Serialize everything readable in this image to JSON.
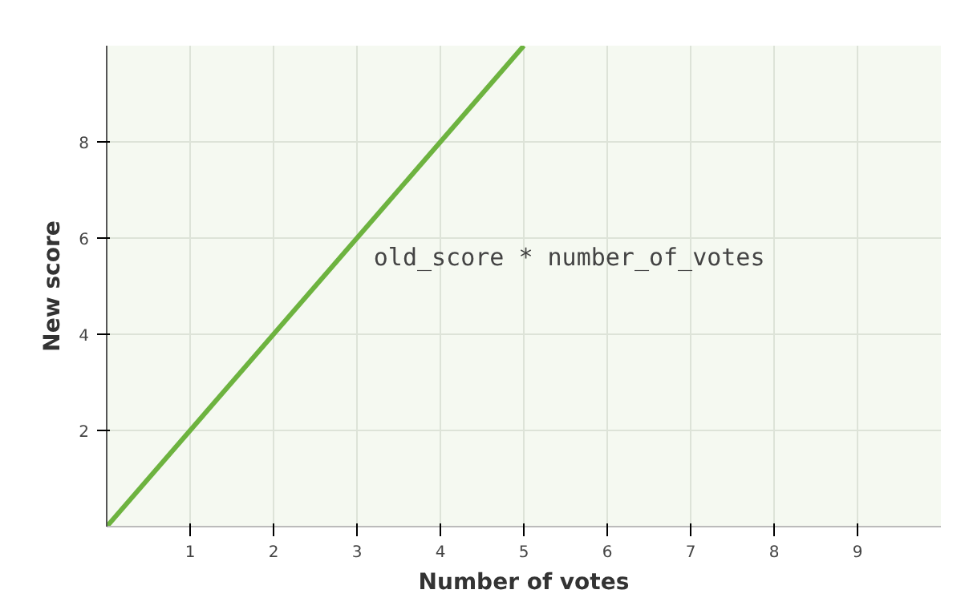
{
  "chart_data": {
    "type": "line",
    "xlabel": "Number of votes",
    "ylabel": "New score",
    "x": [
      0,
      5
    ],
    "series": [
      {
        "color": "#6db33f",
        "values": [
          0,
          10
        ]
      }
    ],
    "xlim": [
      0,
      10
    ],
    "ylim": [
      0,
      10
    ],
    "xticks": [
      1,
      2,
      3,
      4,
      5,
      6,
      7,
      8,
      9
    ],
    "yticks": [
      2,
      4,
      6,
      8
    ],
    "grid": true,
    "marker": "none",
    "line_style": "solid",
    "annotations": [
      "old_score * number_of_votes"
    ]
  }
}
